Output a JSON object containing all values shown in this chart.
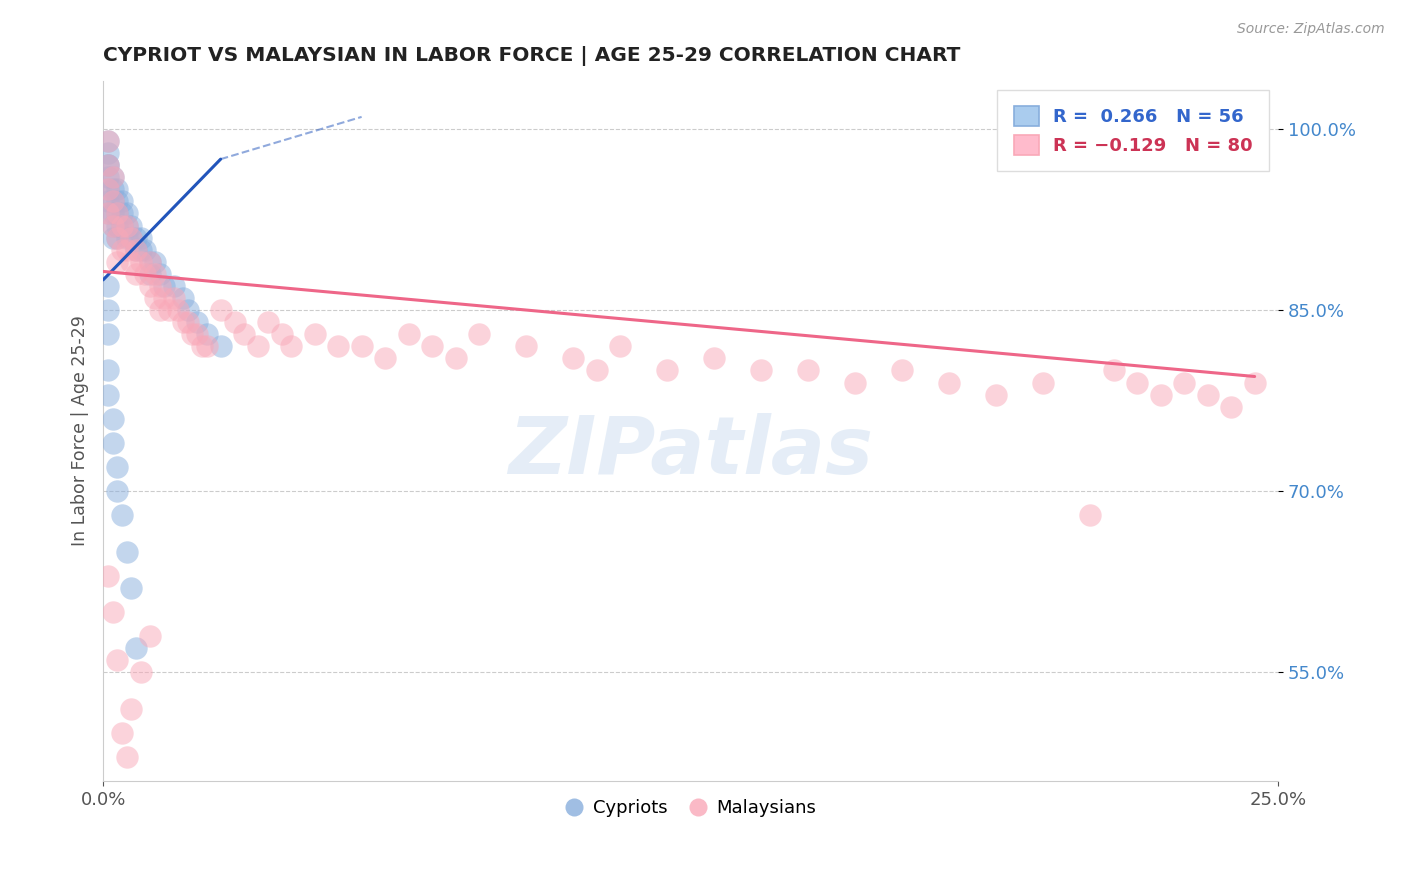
{
  "title": "CYPRIOT VS MALAYSIAN IN LABOR FORCE | AGE 25-29 CORRELATION CHART",
  "source": "Source: ZipAtlas.com",
  "ylabel": "In Labor Force | Age 25-29",
  "ytick_labels": [
    "55.0%",
    "70.0%",
    "85.0%",
    "100.0%"
  ],
  "ytick_values": [
    0.55,
    0.7,
    0.85,
    1.0
  ],
  "color_cypriot": "#88AEDD",
  "color_malaysian": "#F9A8B8",
  "line_color_cypriot": "#2255BB",
  "line_color_malaysian": "#EE6688",
  "xmin": 0.0,
  "xmax": 0.25,
  "ymin": 0.46,
  "ymax": 1.04,
  "watermark": "ZIPatlas",
  "legend_entries": [
    "Cypriots",
    "Malaysians"
  ],
  "cypriot_x": [
    0.001,
    0.001,
    0.001,
    0.001,
    0.001,
    0.001,
    0.001,
    0.001,
    0.002,
    0.002,
    0.002,
    0.002,
    0.002,
    0.002,
    0.003,
    0.003,
    0.003,
    0.003,
    0.003,
    0.004,
    0.004,
    0.004,
    0.005,
    0.005,
    0.005,
    0.006,
    0.006,
    0.007,
    0.007,
    0.008,
    0.008,
    0.009,
    0.01,
    0.01,
    0.011,
    0.012,
    0.013,
    0.015,
    0.017,
    0.018,
    0.02,
    0.022,
    0.025,
    0.001,
    0.001,
    0.001,
    0.001,
    0.001,
    0.002,
    0.002,
    0.003,
    0.003,
    0.004,
    0.005,
    0.006,
    0.007
  ],
  "cypriot_y": [
    0.99,
    0.98,
    0.97,
    0.97,
    0.96,
    0.95,
    0.94,
    0.93,
    0.96,
    0.95,
    0.94,
    0.93,
    0.92,
    0.91,
    0.95,
    0.94,
    0.93,
    0.92,
    0.91,
    0.94,
    0.93,
    0.92,
    0.93,
    0.92,
    0.91,
    0.92,
    0.91,
    0.91,
    0.9,
    0.91,
    0.9,
    0.9,
    0.89,
    0.88,
    0.89,
    0.88,
    0.87,
    0.87,
    0.86,
    0.85,
    0.84,
    0.83,
    0.82,
    0.87,
    0.85,
    0.83,
    0.8,
    0.78,
    0.76,
    0.74,
    0.72,
    0.7,
    0.68,
    0.65,
    0.62,
    0.57
  ],
  "malaysian_x": [
    0.001,
    0.001,
    0.001,
    0.001,
    0.002,
    0.002,
    0.002,
    0.003,
    0.003,
    0.003,
    0.004,
    0.004,
    0.005,
    0.005,
    0.006,
    0.006,
    0.007,
    0.007,
    0.008,
    0.009,
    0.01,
    0.01,
    0.011,
    0.011,
    0.012,
    0.012,
    0.013,
    0.014,
    0.015,
    0.016,
    0.017,
    0.018,
    0.019,
    0.02,
    0.021,
    0.022,
    0.025,
    0.028,
    0.03,
    0.033,
    0.035,
    0.038,
    0.04,
    0.045,
    0.05,
    0.055,
    0.06,
    0.065,
    0.07,
    0.075,
    0.08,
    0.09,
    0.1,
    0.105,
    0.11,
    0.12,
    0.13,
    0.14,
    0.15,
    0.16,
    0.17,
    0.18,
    0.19,
    0.2,
    0.21,
    0.215,
    0.22,
    0.225,
    0.23,
    0.235,
    0.24,
    0.245,
    0.001,
    0.002,
    0.003,
    0.004,
    0.005,
    0.006,
    0.008,
    0.01
  ],
  "malaysian_y": [
    0.99,
    0.97,
    0.95,
    0.93,
    0.96,
    0.94,
    0.92,
    0.93,
    0.91,
    0.89,
    0.92,
    0.9,
    0.92,
    0.9,
    0.91,
    0.89,
    0.9,
    0.88,
    0.89,
    0.88,
    0.89,
    0.87,
    0.88,
    0.86,
    0.87,
    0.85,
    0.86,
    0.85,
    0.86,
    0.85,
    0.84,
    0.84,
    0.83,
    0.83,
    0.82,
    0.82,
    0.85,
    0.84,
    0.83,
    0.82,
    0.84,
    0.83,
    0.82,
    0.83,
    0.82,
    0.82,
    0.81,
    0.83,
    0.82,
    0.81,
    0.83,
    0.82,
    0.81,
    0.8,
    0.82,
    0.8,
    0.81,
    0.8,
    0.8,
    0.79,
    0.8,
    0.79,
    0.78,
    0.79,
    0.68,
    0.8,
    0.79,
    0.78,
    0.79,
    0.78,
    0.77,
    0.79,
    0.63,
    0.6,
    0.56,
    0.5,
    0.48,
    0.52,
    0.55,
    0.58
  ]
}
